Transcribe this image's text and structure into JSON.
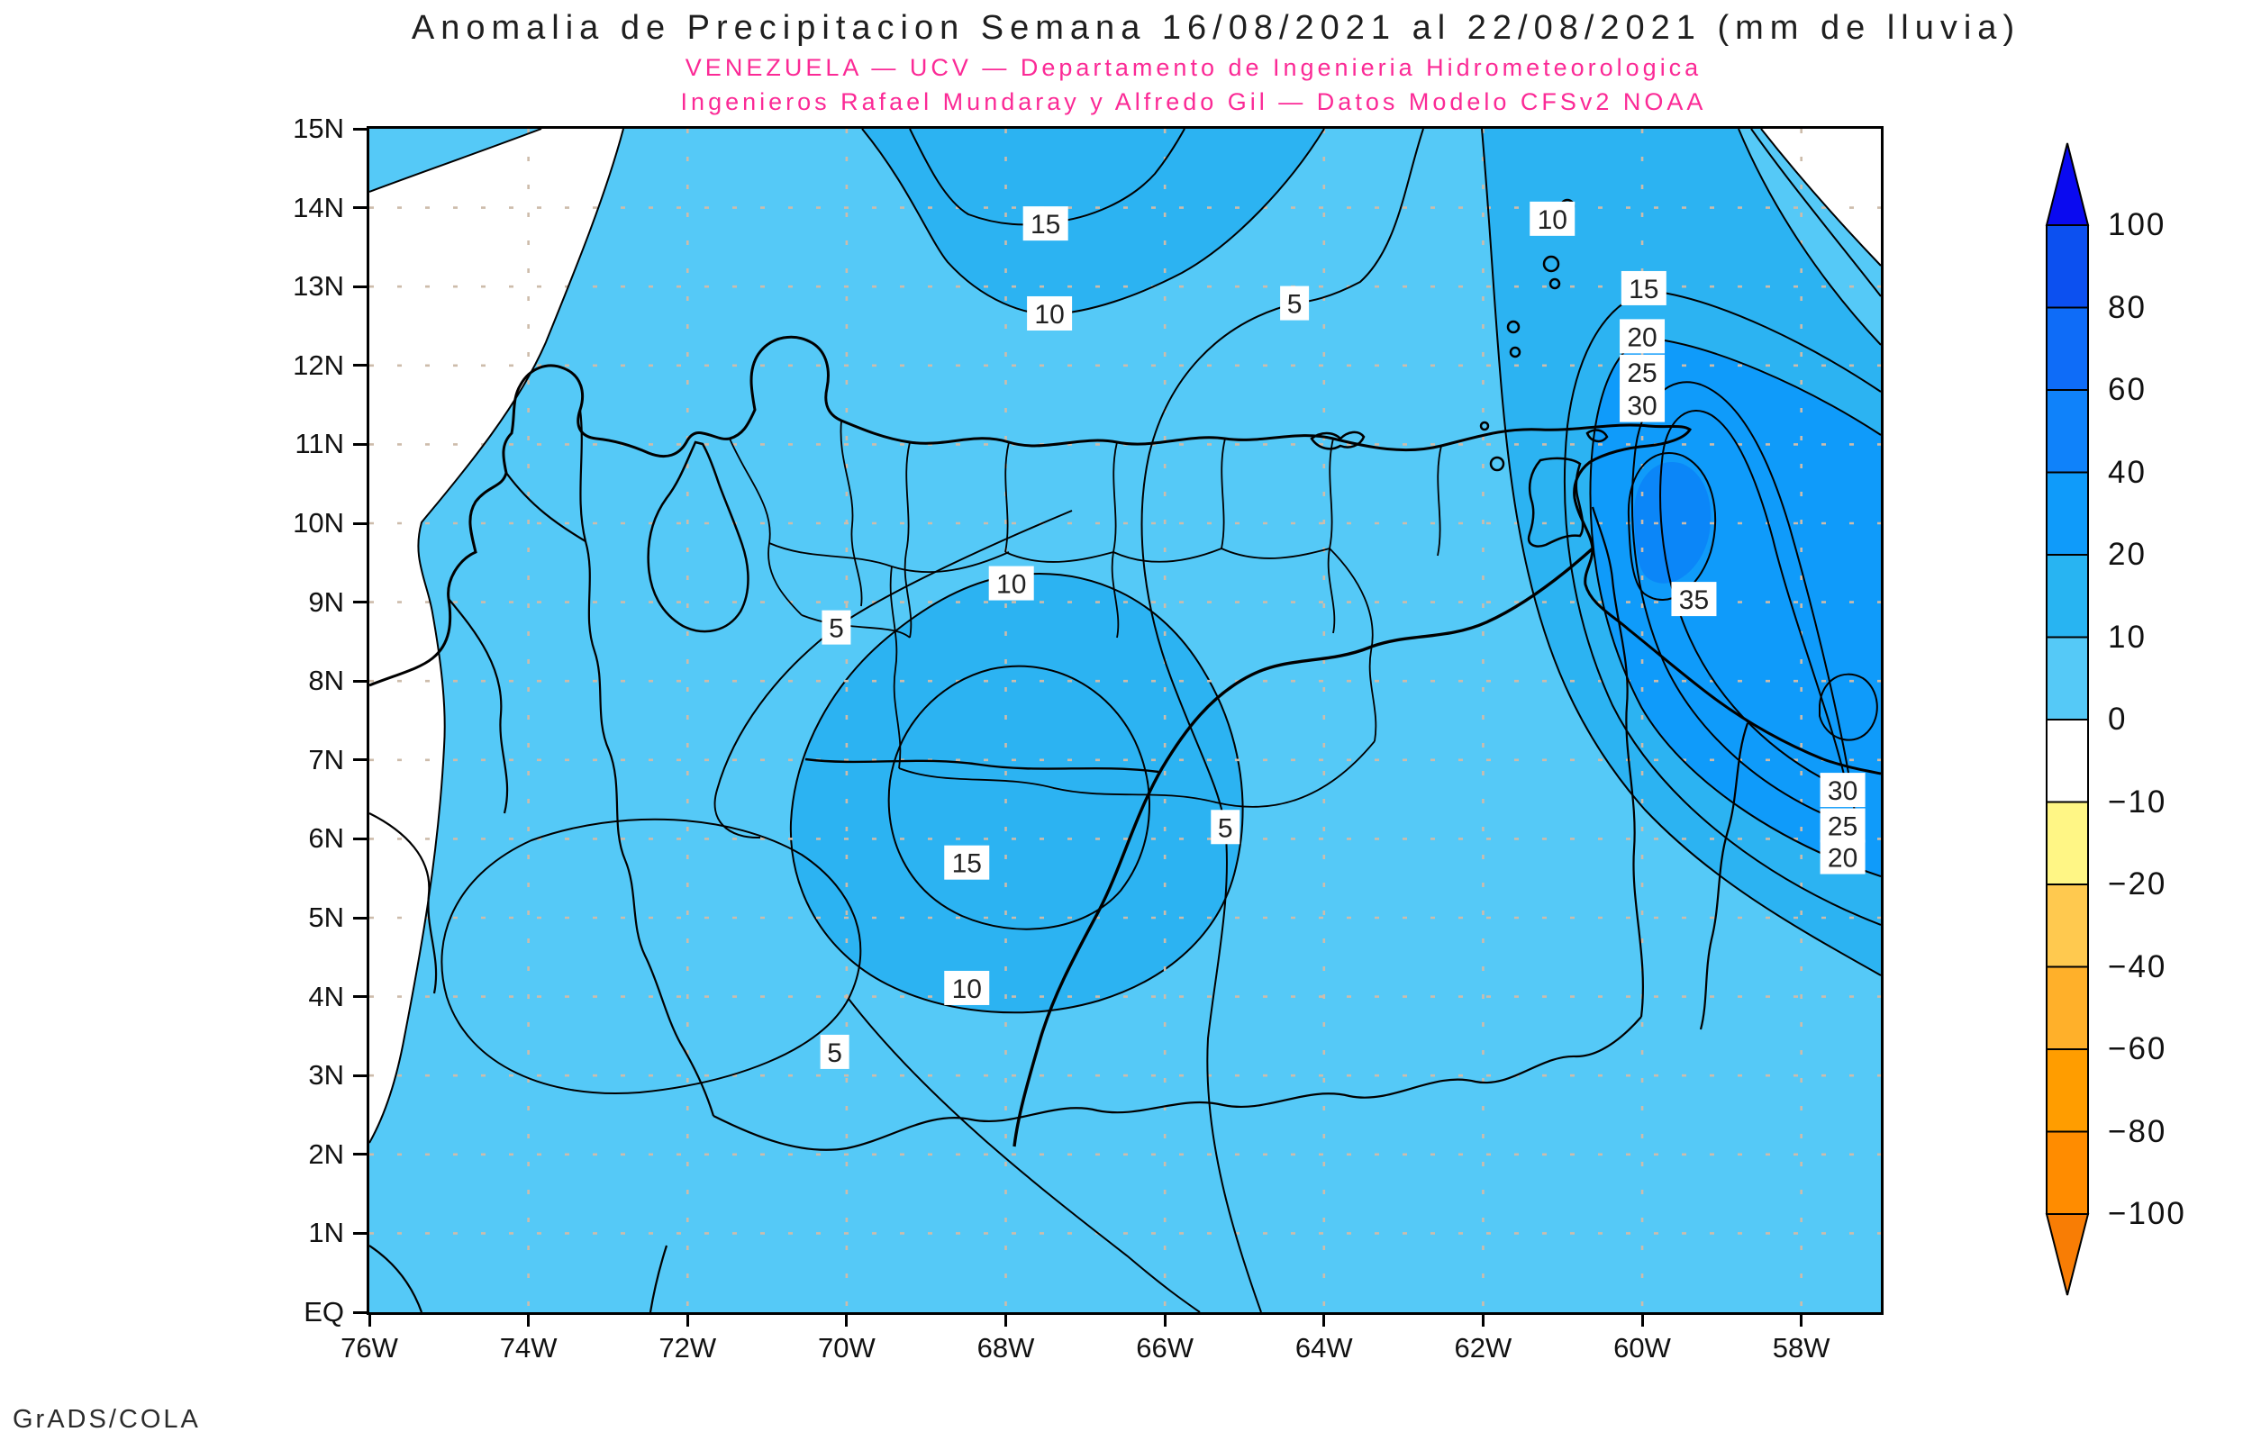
{
  "title": "Anomalia de Precipitacion Semana 16/08/2021 al 22/08/2021 (mm de lluvia)",
  "subtitle_line1": "VENEZUELA — UCV — Departamento de Ingenieria Hidrometeorologica",
  "subtitle_line2": "Ingenieros Rafael Mundaray y Alfredo Gil — Datos Modelo CFSv2 NOAA",
  "footer": "GrADS/COLA",
  "colors": {
    "title_text": "#1f1f1f",
    "subtitle_pink": "#fb2a96",
    "band_0_10": "#55c9f7",
    "band_10_20": "#2cb3f2",
    "band_20_40": "#0f9bfa",
    "band_40_60": "#0b86f8",
    "negative_band_white": "#ffffff",
    "grid_dots": "#cdbcab",
    "contour_line": "#000000"
  },
  "x_axis": {
    "ticks": [
      {
        "label": "76W",
        "lon": -76
      },
      {
        "label": "74W",
        "lon": -74
      },
      {
        "label": "72W",
        "lon": -72
      },
      {
        "label": "70W",
        "lon": -70
      },
      {
        "label": "68W",
        "lon": -68
      },
      {
        "label": "66W",
        "lon": -66
      },
      {
        "label": "64W",
        "lon": -64
      },
      {
        "label": "62W",
        "lon": -62
      },
      {
        "label": "60W",
        "lon": -60
      },
      {
        "label": "58W",
        "lon": -58
      }
    ]
  },
  "y_axis": {
    "ticks": [
      {
        "label": "15N",
        "lat": 15
      },
      {
        "label": "14N",
        "lat": 14
      },
      {
        "label": "13N",
        "lat": 13
      },
      {
        "label": "12N",
        "lat": 12
      },
      {
        "label": "11N",
        "lat": 11
      },
      {
        "label": "10N",
        "lat": 10
      },
      {
        "label": "9N",
        "lat": 9
      },
      {
        "label": "8N",
        "lat": 8
      },
      {
        "label": "7N",
        "lat": 7
      },
      {
        "label": "6N",
        "lat": 6
      },
      {
        "label": "5N",
        "lat": 5
      },
      {
        "label": "4N",
        "lat": 4
      },
      {
        "label": "3N",
        "lat": 3
      },
      {
        "label": "2N",
        "lat": 2
      },
      {
        "label": "1N",
        "lat": 1
      },
      {
        "label": "EQ",
        "lat": 0
      }
    ]
  },
  "chart_data": {
    "type": "heatmap",
    "subtype": "filled-contour-map",
    "title": "Anomalia de Precipitacion Semana 16/08/2021 al 22/08/2021 (mm de lluvia)",
    "units": "mm de lluvia",
    "region": "Venezuela and surrounding Caribbean / northern South America",
    "lon_range_deg": [
      -76,
      -57
    ],
    "lat_range_deg": [
      0,
      15
    ],
    "grid": "dotted, lat every 1 deg, lon every 2 deg",
    "contour_interval_mm": 5,
    "contours_visible": [
      0,
      5,
      10,
      15,
      20,
      25,
      30,
      35
    ],
    "anomaly_maximum": {
      "value_mm": "40+",
      "lon": -59.7,
      "lat": 10.2
    },
    "contour_labels": [
      {
        "value": 15,
        "lon": -67.5,
        "lat": 13.8
      },
      {
        "value": 10,
        "lon": -67.45,
        "lat": 12.66
      },
      {
        "value": 5,
        "lon": -64.37,
        "lat": 12.79
      },
      {
        "value": 10,
        "lon": -61.13,
        "lat": 13.86
      },
      {
        "value": 15,
        "lon": -59.98,
        "lat": 12.98
      },
      {
        "value": 20,
        "lon": -60.0,
        "lat": 12.37
      },
      {
        "value": 25,
        "lon": -60.0,
        "lat": 11.92
      },
      {
        "value": 30,
        "lon": -60.0,
        "lat": 11.5
      },
      {
        "value": 35,
        "lon": -59.35,
        "lat": 9.04
      },
      {
        "value": 10,
        "lon": -67.93,
        "lat": 9.24
      },
      {
        "value": 5,
        "lon": -70.13,
        "lat": 8.68
      },
      {
        "value": 15,
        "lon": -68.49,
        "lat": 5.7
      },
      {
        "value": 5,
        "lon": -65.24,
        "lat": 6.15
      },
      {
        "value": 30,
        "lon": -57.48,
        "lat": 6.62
      },
      {
        "value": 25,
        "lon": -57.48,
        "lat": 6.17
      },
      {
        "value": 20,
        "lon": -57.48,
        "lat": 5.77
      },
      {
        "value": 10,
        "lon": -68.49,
        "lat": 4.11
      },
      {
        "value": 5,
        "lon": -70.15,
        "lat": 3.3
      }
    ],
    "colorbar": {
      "orientation": "vertical",
      "position": "right",
      "levels": [
        100,
        80,
        60,
        40,
        20,
        10,
        0,
        -10,
        -20,
        -40,
        -60,
        -80,
        -100
      ],
      "labels": [
        "100",
        "80",
        "60",
        "40",
        "20",
        "10",
        "0",
        "−10",
        "−20",
        "−40",
        "−60",
        "−80",
        "−100"
      ],
      "segment_colors_top_to_bottom": [
        "#0c50f0",
        "#0e6cf8",
        "#0f82fa",
        "#0f9bfa",
        "#28b4f2",
        "#55c9f7",
        "#ffffff",
        "#fff685",
        "#ffc94f",
        "#ffb02a",
        "#ff9d00",
        "#ff8c00"
      ],
      "arrow_top_color": "#0a0af0",
      "arrow_bottom_color": "#f87d05"
    },
    "fill_bands_observed": [
      {
        "range_mm": "0 to 10",
        "color": "#55c9f7"
      },
      {
        "range_mm": "10 to 20",
        "color": "#2cb3f2"
      },
      {
        "range_mm": "20 to 40",
        "color": "#0f9bfa"
      },
      {
        "range_mm": "40+",
        "color": "#0b86f8"
      },
      {
        "range_mm": "-10 to 0",
        "color": "#ffffff"
      }
    ]
  }
}
